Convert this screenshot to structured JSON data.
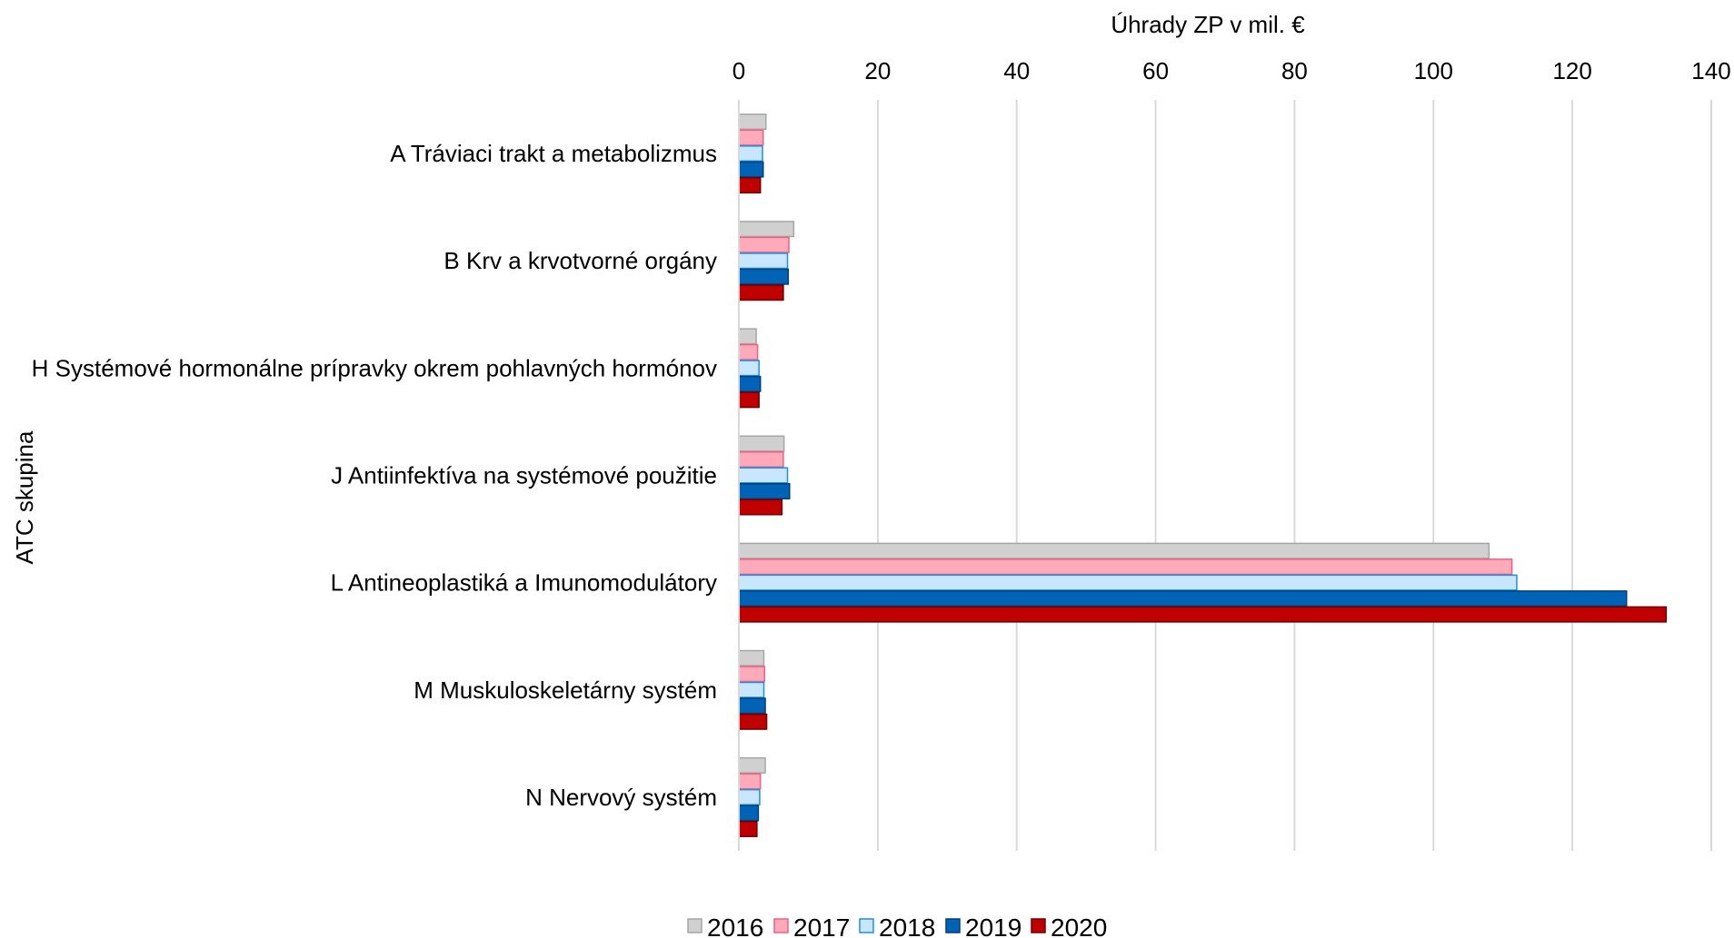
{
  "chart_data": {
    "type": "bar",
    "orientation": "horizontal",
    "xlabel": "Úhrady ZP v mil. €",
    "ylabel": "ATC skupina",
    "xlim": [
      0,
      140
    ],
    "xticks": [
      "0",
      "20",
      "40",
      "60",
      "80",
      "100",
      "120",
      "140"
    ],
    "x_axis_position": "top",
    "grid": true,
    "legend_position": "bottom",
    "categories": [
      "A Tráviaci trakt a metabolizmus",
      "B Krv a krvotvorné orgány",
      "H Systémové hormonálne prípravky okrem pohlavných hormónov",
      "J Antiinfektíva na systémové použitie",
      "L Antineoplastiká a Imunomodulátory",
      "M Muskuloskeletárny systém",
      "N Nervový systém"
    ],
    "series": [
      {
        "name": "2016",
        "color": "#d0d0d0",
        "stroke": "#a6a6a6",
        "values": [
          3.9,
          7.9,
          2.5,
          6.5,
          108,
          3.6,
          3.8
        ]
      },
      {
        "name": "2017",
        "color": "#ffaabb",
        "stroke": "#f06080",
        "values": [
          3.5,
          7.2,
          2.7,
          6.4,
          111.3,
          3.7,
          3.1
        ]
      },
      {
        "name": "2018",
        "color": "#c9e6ff",
        "stroke": "#1f8fe0",
        "values": [
          3.4,
          7.0,
          2.9,
          7.0,
          112,
          3.6,
          3.0
        ]
      },
      {
        "name": "2019",
        "color": "#0063b6",
        "stroke": "#003f7a",
        "values": [
          3.5,
          7.1,
          3.1,
          7.3,
          127.8,
          3.8,
          2.8
        ]
      },
      {
        "name": "2020",
        "color": "#c00000",
        "stroke": "#6e0000",
        "values": [
          3.1,
          6.4,
          2.9,
          6.2,
          133.5,
          4.0,
          2.6
        ]
      }
    ]
  }
}
